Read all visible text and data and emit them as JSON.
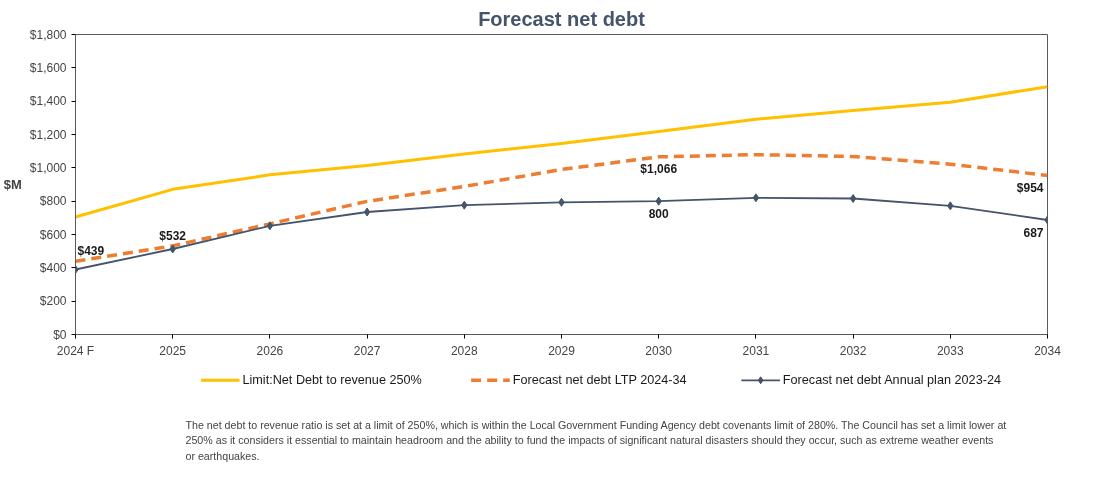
{
  "chart_data": {
    "type": "line",
    "title": "Forecast net debt",
    "ylabel": "$M",
    "categories": [
      "2024 F",
      "2025",
      "2026",
      "2027",
      "2028",
      "2029",
      "2030",
      "2031",
      "2032",
      "2033",
      "2034"
    ],
    "ylim": [
      0,
      1800
    ],
    "yticks": [
      {
        "value": 0,
        "label": "$0"
      },
      {
        "value": 200,
        "label": "$200"
      },
      {
        "value": 400,
        "label": "$400"
      },
      {
        "value": 600,
        "label": "$600"
      },
      {
        "value": 800,
        "label": "$800"
      },
      {
        "value": 1000,
        "label": "$1,000"
      },
      {
        "value": 1200,
        "label": "$1,200"
      },
      {
        "value": 1400,
        "label": "$1,400"
      },
      {
        "value": 1600,
        "label": "$1,600"
      },
      {
        "value": 1800,
        "label": "$1,800"
      }
    ],
    "grid": false,
    "legend": "bottom",
    "series": [
      {
        "name": "Limit:Net Debt to revenue 250%",
        "color": "#ffc000",
        "line_style": "solid",
        "marker": "none",
        "values": [
          705,
          871,
          958,
          1014,
          1083,
          1146,
          1218,
          1291,
          1344,
          1394,
          1487
        ]
      },
      {
        "name": "Forecast net debt LTP 2024-34",
        "color": "#ed7d31",
        "line_style": "dashed",
        "marker": "none",
        "values": [
          439,
          532,
          664,
          799,
          888,
          990,
          1066,
          1079,
          1068,
          1022,
          954
        ],
        "value_labels": [
          "$439",
          "$532",
          null,
          null,
          null,
          null,
          "$1,066",
          null,
          null,
          null,
          "$954"
        ]
      },
      {
        "name": "Forecast net debt Annual plan 2023-24",
        "color": "#44546a",
        "line_style": "solid",
        "marker": "diamond",
        "values": [
          390,
          513,
          652,
          735,
          776,
          793,
          800,
          820,
          816,
          772,
          687
        ],
        "value_labels": [
          null,
          null,
          null,
          null,
          null,
          null,
          "800",
          null,
          null,
          null,
          "687"
        ]
      }
    ],
    "annotations": [
      "The net debt to revenue ratio is set at a limit of 250%, which is within the Local Government Funding Agency debt covenants limit of 280%. The Council has set a limit lower at 250% as it considers it essential to maintain headroom and the ability to fund the impacts of significant natural disasters should they occur, such as extreme weather events or earthquakes."
    ]
  }
}
